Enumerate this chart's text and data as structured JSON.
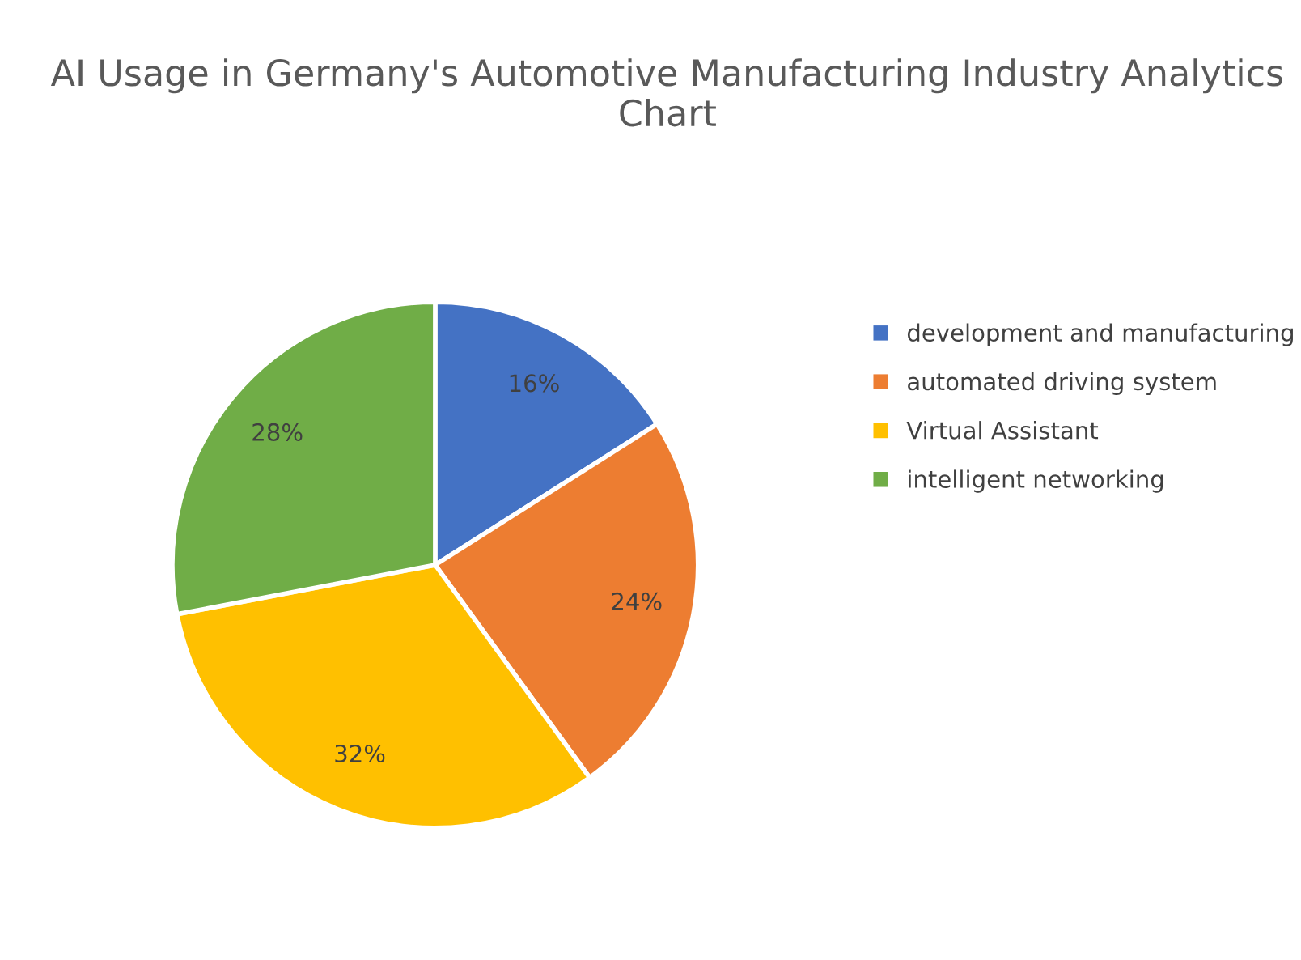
{
  "chart_data": {
    "type": "pie",
    "title": "AI Usage in Germany's Automotive Manufacturing Industry Analytics Chart",
    "categories": [
      "development and manufacturing",
      "automated driving system",
      "Virtual Assistant",
      "intelligent networking"
    ],
    "values": [
      16,
      24,
      32,
      28
    ],
    "colors": [
      "#4472c4",
      "#ed7d31",
      "#ffc000",
      "#70ad47"
    ],
    "value_labels": [
      "16%",
      "24%",
      "32%",
      "28%"
    ],
    "legend": "right"
  }
}
